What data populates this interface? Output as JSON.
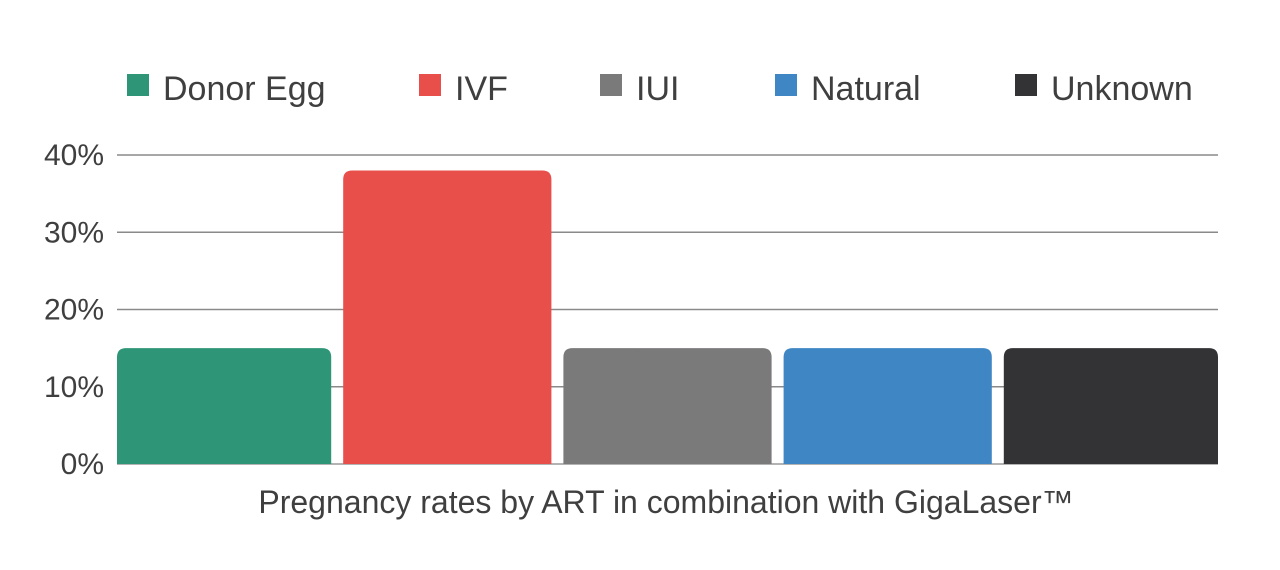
{
  "chart_data": {
    "type": "bar",
    "title": "",
    "caption": "Pregnancy rates by ART in combination with GigaLaser™",
    "xlabel": "",
    "ylabel": "",
    "ylim": [
      0,
      40
    ],
    "yticks": [
      0,
      10,
      20,
      30,
      40
    ],
    "ytick_suffix": "%",
    "grid": true,
    "legend_position": "top",
    "categories": [
      "Donor Egg",
      "IVF",
      "IUI",
      "Natural",
      "Unknown"
    ],
    "values": [
      15,
      38,
      15,
      15,
      15
    ],
    "colors": [
      "#2e9676",
      "#e84e4a",
      "#7b7a7b",
      "#3f86c4",
      "#333234"
    ]
  }
}
